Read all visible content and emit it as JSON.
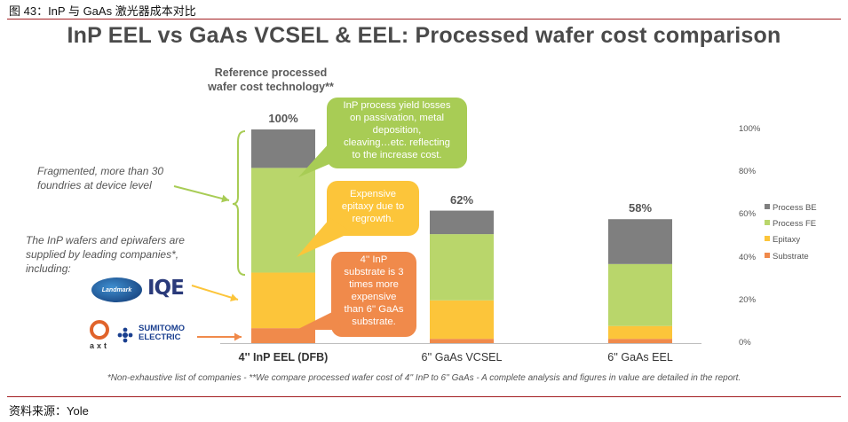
{
  "figure_caption": "图 43：InP 与 GaAs 激光器成本对比",
  "source": "资料来源：Yole",
  "chart_data": {
    "type": "bar",
    "stacked": true,
    "title": "InP EEL vs GaAs VCSEL & EEL: Processed wafer cost comparison",
    "categories": [
      "4'' InP EEL (DFB)",
      "6'' GaAs VCSEL",
      "6'' GaAs EEL"
    ],
    "category_bold": [
      true,
      false,
      false
    ],
    "totals_labels": [
      "100%",
      "62%",
      "58%"
    ],
    "totals": [
      100,
      62,
      58
    ],
    "series": [
      {
        "name": "Substrate",
        "color": "#f08a4b",
        "values": [
          7,
          2,
          2
        ]
      },
      {
        "name": "Epitaxy",
        "color": "#fcc53a",
        "values": [
          26,
          18,
          6
        ]
      },
      {
        "name": "Process FE",
        "color": "#b9d66b",
        "values": [
          49,
          31,
          29
        ]
      },
      {
        "name": "Process BE",
        "color": "#7f7f7f",
        "values": [
          18,
          11,
          21
        ]
      }
    ],
    "legend_order": [
      "Process BE",
      "Process FE",
      "Epitaxy",
      "Substrate"
    ],
    "legend_position": "right",
    "yaxis_position": "right",
    "ylim": [
      0,
      100
    ],
    "yticks": [
      "0%",
      "20%",
      "40%",
      "60%",
      "80%",
      "100%"
    ],
    "ytick_values": [
      0,
      20,
      40,
      60,
      80,
      100
    ],
    "reference_label": "Reference processed wafer cost technology**",
    "annotations": {
      "callout_yield": "InP process yield losses on passivation, metal deposition, cleaving…etc. reflecting to the increase cost.",
      "callout_epitaxy": "Expensive epitaxy due to regrowth.",
      "callout_substrate": "4'' InP substrate is 3 times more expensive than 6'' GaAs substrate.",
      "note_foundries": "Fragmented, more than 30 foundries at device level",
      "note_wafers": "The InP wafers and epiwafers are supplied by leading companies*, including:"
    },
    "footnote": "*Non-exhaustive list of companies - **We compare processed wafer cost of 4'' InP to 6'' GaAs - A complete analysis and figures in value are detailed in the report."
  },
  "callout_lines": {
    "yield": [
      "InP process yield losses",
      "on passivation, metal",
      "deposition,",
      "cleaving…etc. reflecting",
      "to the increase cost."
    ],
    "epitaxy": [
      "Expensive",
      "epitaxy due to",
      "regrowth."
    ],
    "substrate": [
      "4'' InP",
      "substrate is 3",
      "times more",
      "expensive",
      "than 6'' GaAs",
      "substrate."
    ]
  },
  "note_lines": {
    "foundries": [
      "Fragmented, more than 30",
      "foundries at device level"
    ],
    "wafers": [
      "The InP wafers and epiwafers are",
      "supplied by leading companies*,",
      "including:"
    ]
  },
  "reference_lines": [
    "Reference processed",
    "wafer cost technology**"
  ],
  "logos": {
    "landmark": "Landmark",
    "iqe": "IQE",
    "axt": "axt",
    "sumitomo_line1": "SUMITOMO",
    "sumitomo_line2": "ELECTRIC"
  },
  "colors": {
    "rule": "#a31e22",
    "arrow_green": "#a8cc55",
    "arrow_yellow": "#fcc53a",
    "arrow_orange": "#f08a4b",
    "bracket_green": "#a8cc55"
  }
}
